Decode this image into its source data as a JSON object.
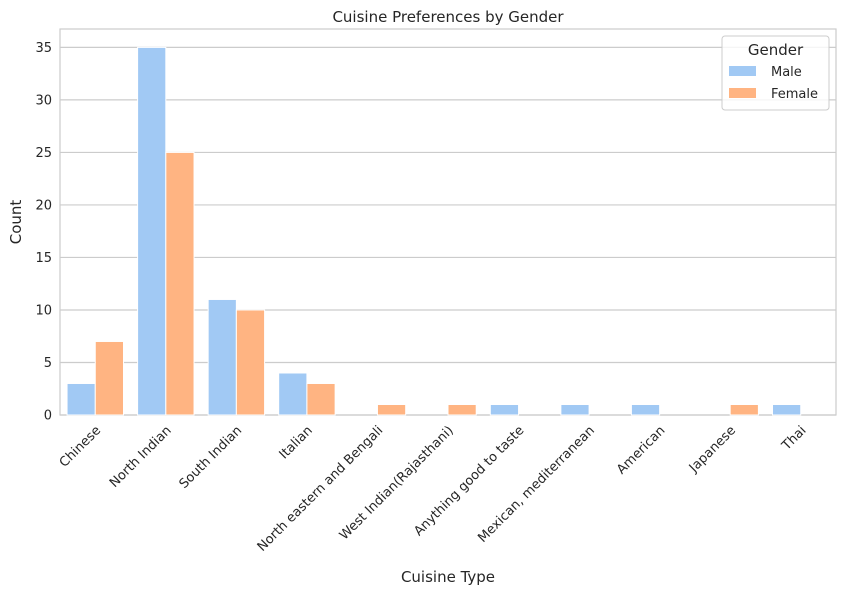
{
  "chart_data": {
    "type": "bar",
    "title": "Cuisine Preferences by Gender",
    "xlabel": "Cuisine Type",
    "ylabel": "Count",
    "ylim": [
      0,
      36.75
    ],
    "yticks": [
      0,
      5,
      10,
      15,
      20,
      25,
      30,
      35
    ],
    "grid": true,
    "legend_placement": "top-right",
    "legend_title": "Gender",
    "categories": [
      "Chinese",
      "North Indian",
      "South Indian",
      "Italian",
      "North eastern and Bengali",
      "West Indian(Rajasthani)",
      "Anything good to taste",
      "Mexican, mediterranean",
      "American",
      "Japanese",
      "Thai"
    ],
    "series": [
      {
        "name": "Male",
        "color": "#a1c9f4",
        "values": [
          3,
          35,
          11,
          4,
          0,
          0,
          1,
          1,
          1,
          0,
          1
        ]
      },
      {
        "name": "Female",
        "color": "#ffb482",
        "values": [
          7,
          25,
          10,
          3,
          1,
          1,
          0,
          0,
          0,
          1,
          0
        ]
      }
    ]
  }
}
